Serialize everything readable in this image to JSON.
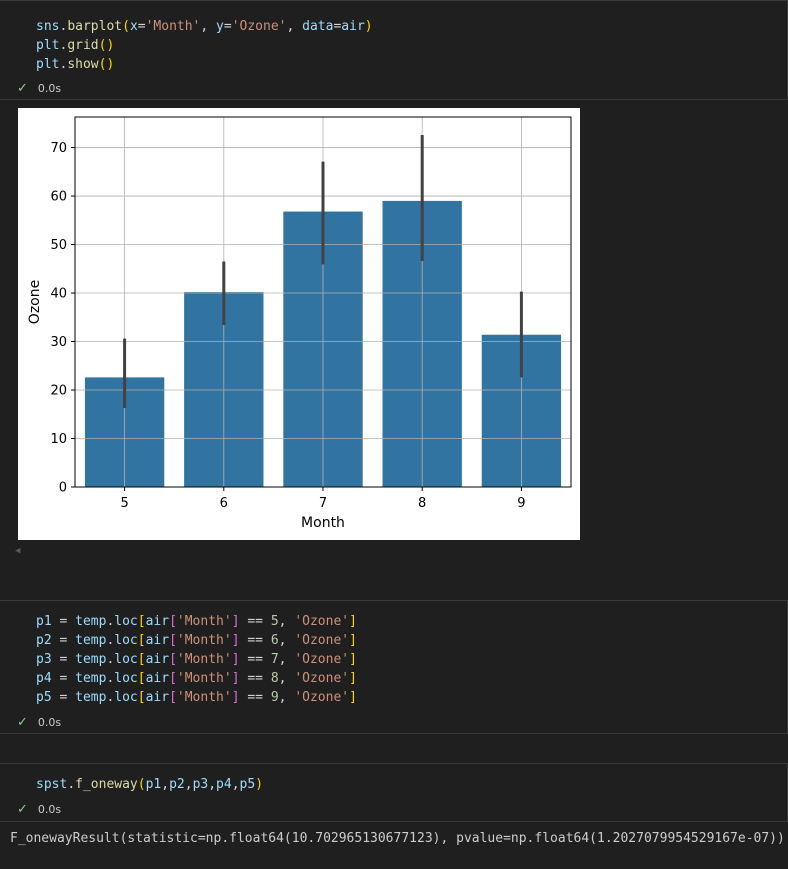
{
  "cells": [
    {
      "lines": [
        "sns.barplot(x='Month', y='Ozone', data=air)",
        "plt.grid()",
        "plt.show()"
      ],
      "status": "0.0s"
    },
    {
      "lines": [
        "p1 = temp.loc[air['Month'] == 5, 'Ozone']",
        "p2 = temp.loc[air['Month'] == 6, 'Ozone']",
        "p3 = temp.loc[air['Month'] == 7, 'Ozone']",
        "p4 = temp.loc[air['Month'] == 8, 'Ozone']",
        "p5 = temp.loc[air['Month'] == 9, 'Ozone']"
      ],
      "status": "0.0s"
    },
    {
      "lines": [
        "spst.f_oneway(p1,p2,p3,p4,p5)"
      ],
      "status": "0.0s"
    }
  ],
  "output_text": "F_onewayResult(statistic=np.float64(10.702965130677123), pvalue=np.float64(1.2027079954529167e-07))",
  "icons": {
    "success": "checkmark-icon",
    "scroll": "scroll-left-arrow-icon"
  },
  "colors": {
    "bar": "#3274a1",
    "error_bar": "#424242",
    "success": "#89d185"
  },
  "chart_data": {
    "type": "bar",
    "categories": [
      "5",
      "6",
      "7",
      "8",
      "9"
    ],
    "values": [
      22.6,
      40.2,
      56.8,
      59.0,
      31.4
    ],
    "error_low": [
      16.3,
      33.4,
      45.9,
      46.6,
      22.6
    ],
    "error_high": [
      30.6,
      46.5,
      67.1,
      72.6,
      40.3
    ],
    "xlabel": "Month",
    "ylabel": "Ozone",
    "yticks": [
      0,
      10,
      20,
      30,
      40,
      50,
      60,
      70
    ],
    "ylim": [
      0,
      76.3
    ],
    "grid": true
  }
}
